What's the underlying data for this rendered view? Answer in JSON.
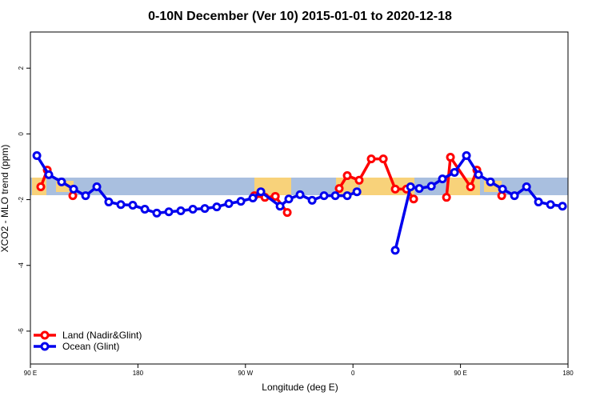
{
  "chart_data": {
    "type": "line",
    "title": "0-10N December (Ver 10)   2015-01-01 to 2020-12-18",
    "x_label": "Longitude (deg E)",
    "y_label": "XCO2 - MLO trend (ppm)",
    "xlim": [
      90,
      540
    ],
    "ylim": [
      -7,
      3.1
    ],
    "xticks": [
      {
        "value": 90,
        "label": "90 E"
      },
      {
        "value": 180,
        "label": "180"
      },
      {
        "value": 270,
        "label": "90 W"
      },
      {
        "value": 360,
        "label": "0"
      },
      {
        "value": 450,
        "label": "90 E"
      },
      {
        "value": 540,
        "label": "180"
      }
    ],
    "yticks": [
      2,
      0,
      -2,
      -4,
      -6
    ],
    "legend": "bottom-left",
    "series": [
      {
        "name": "Land (Nadir&Glint)",
        "color": "#ff0000",
        "x": [
          98.7,
          104.1,
          115,
          125.5,
          200,
          277.5,
          286.3,
          295,
          305,
          330,
          348.5,
          355.2,
          365.2,
          375.3,
          385.4,
          395.4,
          404.8,
          410.8,
          425,
          438.3,
          441.6,
          458.4,
          463.7,
          475,
          484.5
        ],
        "values": [
          -1.61,
          -1.1,
          null,
          -1.88,
          null,
          -1.88,
          -1.93,
          -1.9,
          -2.39,
          null,
          -1.66,
          -1.27,
          -1.41,
          -0.76,
          -0.76,
          -1.68,
          -1.68,
          -1.98,
          null,
          -1.93,
          -0.71,
          -1.61,
          -1.1,
          null,
          -1.88
        ]
      },
      {
        "name": "Ocean (Glint)",
        "color": "#0000ee",
        "x": [
          95.4,
          105.4,
          116.1,
          126.2,
          136.2,
          145.6,
          155.6,
          165.7,
          175.7,
          185.8,
          195.8,
          205.9,
          215.9,
          226,
          236,
          246,
          256.1,
          266.2,
          276.2,
          282.9,
          299,
          306.3,
          315.7,
          325.8,
          335.8,
          345.2,
          355.2,
          363.3,
          380,
          395.4,
          408.2,
          415.5,
          425.6,
          434.9,
          445,
          455,
          465.1,
          475.1,
          485.2,
          495.2,
          505.3,
          515.3,
          525.4,
          535.4
        ],
        "values": [
          -0.66,
          -1.24,
          -1.46,
          -1.68,
          -1.88,
          -1.61,
          -2.07,
          -2.15,
          -2.17,
          -2.29,
          -2.41,
          -2.37,
          -2.34,
          -2.29,
          -2.27,
          -2.22,
          -2.12,
          -2.05,
          -1.95,
          -1.76,
          -2.2,
          -1.98,
          -1.85,
          -2.02,
          -1.88,
          -1.88,
          -1.88,
          -1.76,
          null,
          -3.54,
          -1.61,
          -1.66,
          -1.59,
          -1.37,
          -1.17,
          -0.66,
          -1.24,
          -1.46,
          -1.68,
          -1.88,
          -1.61,
          -2.07,
          -2.15,
          -2.2
        ]
      }
    ]
  }
}
